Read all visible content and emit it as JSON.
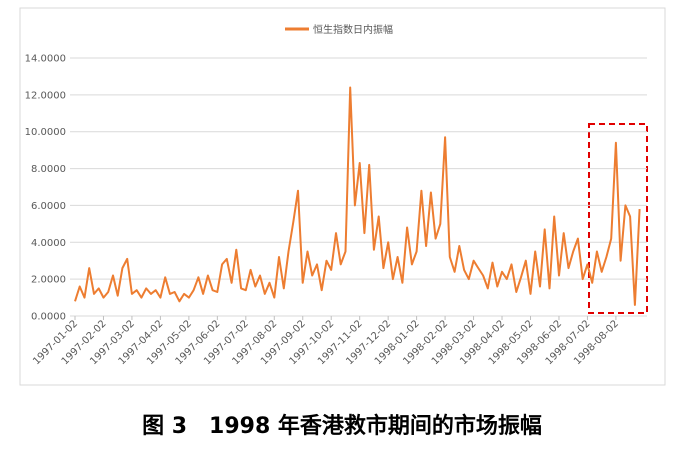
{
  "chart_data": {
    "type": "line",
    "legend": "top",
    "caption": "图 3　1998 年香港救市期间的市场振幅",
    "categories": [
      "1997-01-02",
      null,
      null,
      null,
      null,
      null,
      "1997-02-02",
      null,
      null,
      null,
      null,
      null,
      "1997-03-02",
      null,
      null,
      null,
      null,
      null,
      "1997-04-02",
      null,
      null,
      null,
      null,
      null,
      "1997-05-02",
      null,
      null,
      null,
      null,
      null,
      "1997-06-02",
      null,
      null,
      null,
      null,
      null,
      "1997-07-02",
      null,
      null,
      null,
      null,
      null,
      "1997-08-02",
      null,
      null,
      null,
      null,
      null,
      "1997-09-02",
      null,
      null,
      null,
      null,
      null,
      "1997-10-02",
      null,
      null,
      null,
      null,
      null,
      "1997-11-02",
      null,
      null,
      null,
      null,
      null,
      "1997-12-02",
      null,
      null,
      null,
      null,
      null,
      "1998-01-02",
      null,
      null,
      null,
      null,
      null,
      "1998-02-02",
      null,
      null,
      null,
      null,
      null,
      "1998-03-02",
      null,
      null,
      null,
      null,
      null,
      "1998-04-02",
      null,
      null,
      null,
      null,
      null,
      "1998-05-02",
      null,
      null,
      null,
      null,
      null,
      "1998-06-02",
      null,
      null,
      null,
      null,
      null,
      "1998-07-02",
      null,
      null,
      null,
      null,
      null,
      "1998-08-02",
      null,
      null,
      null,
      null,
      null
    ],
    "series": [
      {
        "name": "恒生指数日内振幅",
        "color": "#ed7d31",
        "values": [
          0.8,
          1.6,
          1.0,
          2.6,
          1.2,
          1.5,
          1.0,
          1.3,
          2.2,
          1.1,
          2.6,
          3.1,
          1.2,
          1.4,
          1.0,
          1.5,
          1.2,
          1.4,
          1.0,
          2.1,
          1.2,
          1.3,
          0.8,
          1.2,
          1.0,
          1.4,
          2.1,
          1.2,
          2.2,
          1.4,
          1.3,
          2.8,
          3.1,
          1.8,
          3.6,
          1.5,
          1.4,
          2.5,
          1.6,
          2.2,
          1.2,
          1.8,
          1.0,
          3.2,
          1.5,
          3.5,
          5.1,
          6.8,
          1.8,
          3.5,
          2.2,
          2.8,
          1.4,
          3.0,
          2.5,
          4.5,
          2.8,
          3.5,
          12.4,
          6.0,
          8.3,
          4.5,
          8.2,
          3.6,
          5.4,
          2.6,
          4.0,
          2.0,
          3.2,
          1.8,
          4.8,
          2.8,
          3.5,
          6.8,
          3.8,
          6.7,
          4.2,
          5.0,
          9.7,
          3.2,
          2.4,
          3.8,
          2.5,
          2.0,
          3.0,
          2.6,
          2.2,
          1.5,
          2.9,
          1.6,
          2.4,
          2.0,
          2.8,
          1.3,
          2.1,
          3.0,
          1.2,
          3.5,
          1.6,
          4.7,
          1.5,
          5.4,
          2.2,
          4.5,
          2.6,
          3.5,
          4.2,
          2.0,
          2.8,
          1.8,
          3.5,
          2.4,
          3.2,
          4.2,
          9.4,
          3.0,
          6.0,
          5.4,
          0.6,
          5.8
        ]
      }
    ],
    "ylim": [
      0,
      14
    ],
    "yticks": [
      {
        "value": 0,
        "label": "0.0000"
      },
      {
        "value": 2,
        "label": "2.0000"
      },
      {
        "value": 4,
        "label": "4.0000"
      },
      {
        "value": 6,
        "label": "6.0000"
      },
      {
        "value": 8,
        "label": "8.0000"
      },
      {
        "value": 10,
        "label": "10.0000"
      },
      {
        "value": 12,
        "label": "12.0000"
      },
      {
        "value": 14,
        "label": "14.0000"
      }
    ],
    "grid": true
  }
}
